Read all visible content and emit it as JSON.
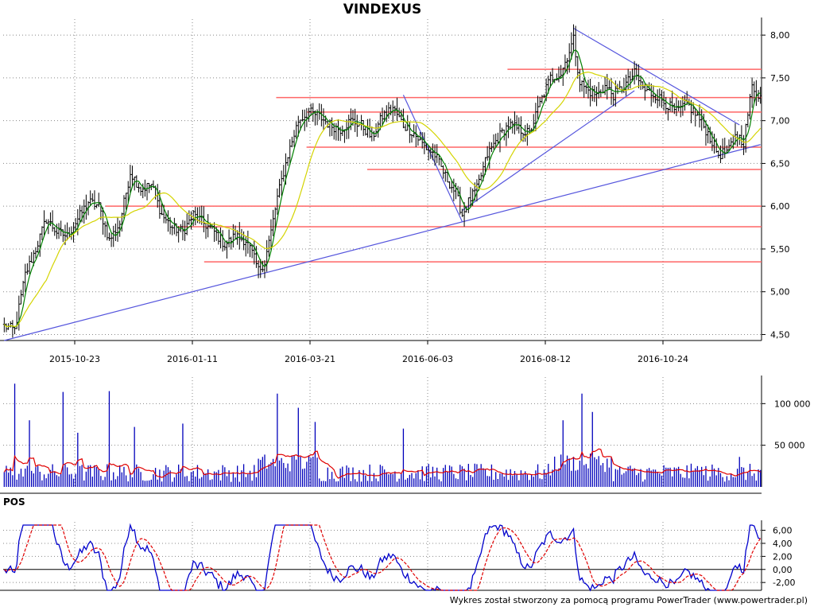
{
  "title": "VINDEXUS",
  "footer": "Wykres został stworzony za pomocą programu PowerTrader (www.powertrader.pl)",
  "chart_data": [
    {
      "type": "candlestick",
      "name": "price",
      "x_tick_labels": [
        "2015-10-23",
        "2016-01-11",
        "2016-03-21",
        "2016-06-03",
        "2016-08-12",
        "2016-10-24"
      ],
      "y_tick_labels": [
        "8,00",
        "7,50",
        "7,00",
        "6,50",
        "6,00",
        "5,50",
        "5,00",
        "4,50"
      ],
      "y_ticks": [
        8.0,
        7.5,
        7.0,
        6.5,
        6.0,
        5.5,
        5.0,
        4.5
      ],
      "ylim": [
        4.43,
        8.15
      ],
      "close_keyframes": [
        [
          0,
          4.6
        ],
        [
          5,
          4.55
        ],
        [
          10,
          5.2
        ],
        [
          15,
          5.5
        ],
        [
          20,
          5.85
        ],
        [
          25,
          5.7
        ],
        [
          30,
          5.65
        ],
        [
          35,
          5.85
        ],
        [
          40,
          6.05
        ],
        [
          45,
          6.0
        ],
        [
          50,
          5.6
        ],
        [
          55,
          5.8
        ],
        [
          60,
          6.4
        ],
        [
          65,
          6.2
        ],
        [
          70,
          6.25
        ],
        [
          75,
          5.9
        ],
        [
          80,
          5.75
        ],
        [
          85,
          5.7
        ],
        [
          90,
          5.9
        ],
        [
          95,
          5.8
        ],
        [
          100,
          5.7
        ],
        [
          105,
          5.55
        ],
        [
          110,
          5.65
        ],
        [
          115,
          5.6
        ],
        [
          118,
          5.45
        ],
        [
          121,
          5.25
        ],
        [
          124,
          5.35
        ],
        [
          127,
          5.7
        ],
        [
          130,
          6.1
        ],
        [
          135,
          6.6
        ],
        [
          140,
          7.0
        ],
        [
          145,
          7.1
        ],
        [
          150,
          7.05
        ],
        [
          155,
          6.95
        ],
        [
          160,
          6.9
        ],
        [
          165,
          7.0
        ],
        [
          170,
          6.95
        ],
        [
          175,
          6.8
        ],
        [
          180,
          7.05
        ],
        [
          185,
          7.15
        ],
        [
          190,
          6.95
        ],
        [
          195,
          6.85
        ],
        [
          200,
          6.7
        ],
        [
          205,
          6.6
        ],
        [
          210,
          6.35
        ],
        [
          215,
          6.15
        ],
        [
          218,
          5.9
        ],
        [
          221,
          6.05
        ],
        [
          225,
          6.2
        ],
        [
          230,
          6.6
        ],
        [
          235,
          6.8
        ],
        [
          240,
          6.95
        ],
        [
          245,
          6.9
        ],
        [
          250,
          6.85
        ],
        [
          255,
          7.2
        ],
        [
          260,
          7.5
        ],
        [
          265,
          7.55
        ],
        [
          268,
          7.75
        ],
        [
          271,
          7.95
        ],
        [
          274,
          7.45
        ],
        [
          278,
          7.35
        ],
        [
          282,
          7.3
        ],
        [
          286,
          7.4
        ],
        [
          290,
          7.3
        ],
        [
          295,
          7.4
        ],
        [
          300,
          7.55
        ],
        [
          305,
          7.35
        ],
        [
          310,
          7.3
        ],
        [
          315,
          7.2
        ],
        [
          320,
          7.1
        ],
        [
          325,
          7.2
        ],
        [
          330,
          7.05
        ],
        [
          335,
          6.85
        ],
        [
          340,
          6.6
        ],
        [
          345,
          6.65
        ],
        [
          348,
          6.85
        ],
        [
          352,
          6.75
        ],
        [
          356,
          7.4
        ],
        [
          360,
          7.28
        ]
      ],
      "n_bars": 361,
      "moving_averages": [
        {
          "color": "#008000",
          "period": 5
        },
        {
          "color": "#d4d400",
          "period": 21
        }
      ],
      "horizontal_levels": [
        {
          "y": 7.6,
          "from": 0.665
        },
        {
          "y": 7.27,
          "from": 0.36
        },
        {
          "y": 7.1,
          "from": 0.4
        },
        {
          "y": 6.69,
          "from": 0.4
        },
        {
          "y": 6.43,
          "from": 0.48
        },
        {
          "y": 6.0,
          "from": 0.135
        },
        {
          "y": 5.76,
          "from": 0.23
        },
        {
          "y": 5.35,
          "from": 0.265
        }
      ],
      "trendlines": [
        {
          "from": [
            0,
            4.43
          ],
          "to": [
            360,
            6.72
          ]
        },
        {
          "from": [
            190,
            7.3
          ],
          "to": [
            218,
            5.82
          ]
        },
        {
          "from": [
            218,
            5.95
          ],
          "to": [
            300,
            7.35
          ]
        },
        {
          "from": [
            271,
            8.08
          ],
          "to": [
            350,
            6.95
          ]
        }
      ]
    },
    {
      "type": "bar",
      "name": "volume",
      "y_tick_labels": [
        "100 000",
        "50 000"
      ],
      "y_ticks": [
        100000,
        50000
      ],
      "ylim": [
        0,
        128000
      ],
      "spikes": [
        [
          5,
          124000
        ],
        [
          12,
          80000
        ],
        [
          28,
          114000
        ],
        [
          35,
          65000
        ],
        [
          50,
          115000
        ],
        [
          62,
          72000
        ],
        [
          85,
          76000
        ],
        [
          130,
          112000
        ],
        [
          140,
          95000
        ],
        [
          148,
          78000
        ],
        [
          190,
          70000
        ],
        [
          266,
          80000
        ],
        [
          275,
          112000
        ],
        [
          280,
          90000
        ],
        [
          330,
          25000
        ],
        [
          350,
          36000
        ]
      ],
      "ma_color": "#e00000"
    },
    {
      "type": "line",
      "name": "POS",
      "label": "POS",
      "y_tick_labels": [
        "6,00",
        "4,00",
        "2,00",
        "0,00",
        "-2,00"
      ],
      "y_ticks": [
        6,
        4,
        2,
        0,
        -2
      ],
      "ylim": [
        -3.2,
        6.8
      ],
      "series": [
        {
          "color": "#0000cc",
          "style": "solid"
        },
        {
          "color": "#e00000",
          "style": "dashed"
        }
      ]
    }
  ]
}
